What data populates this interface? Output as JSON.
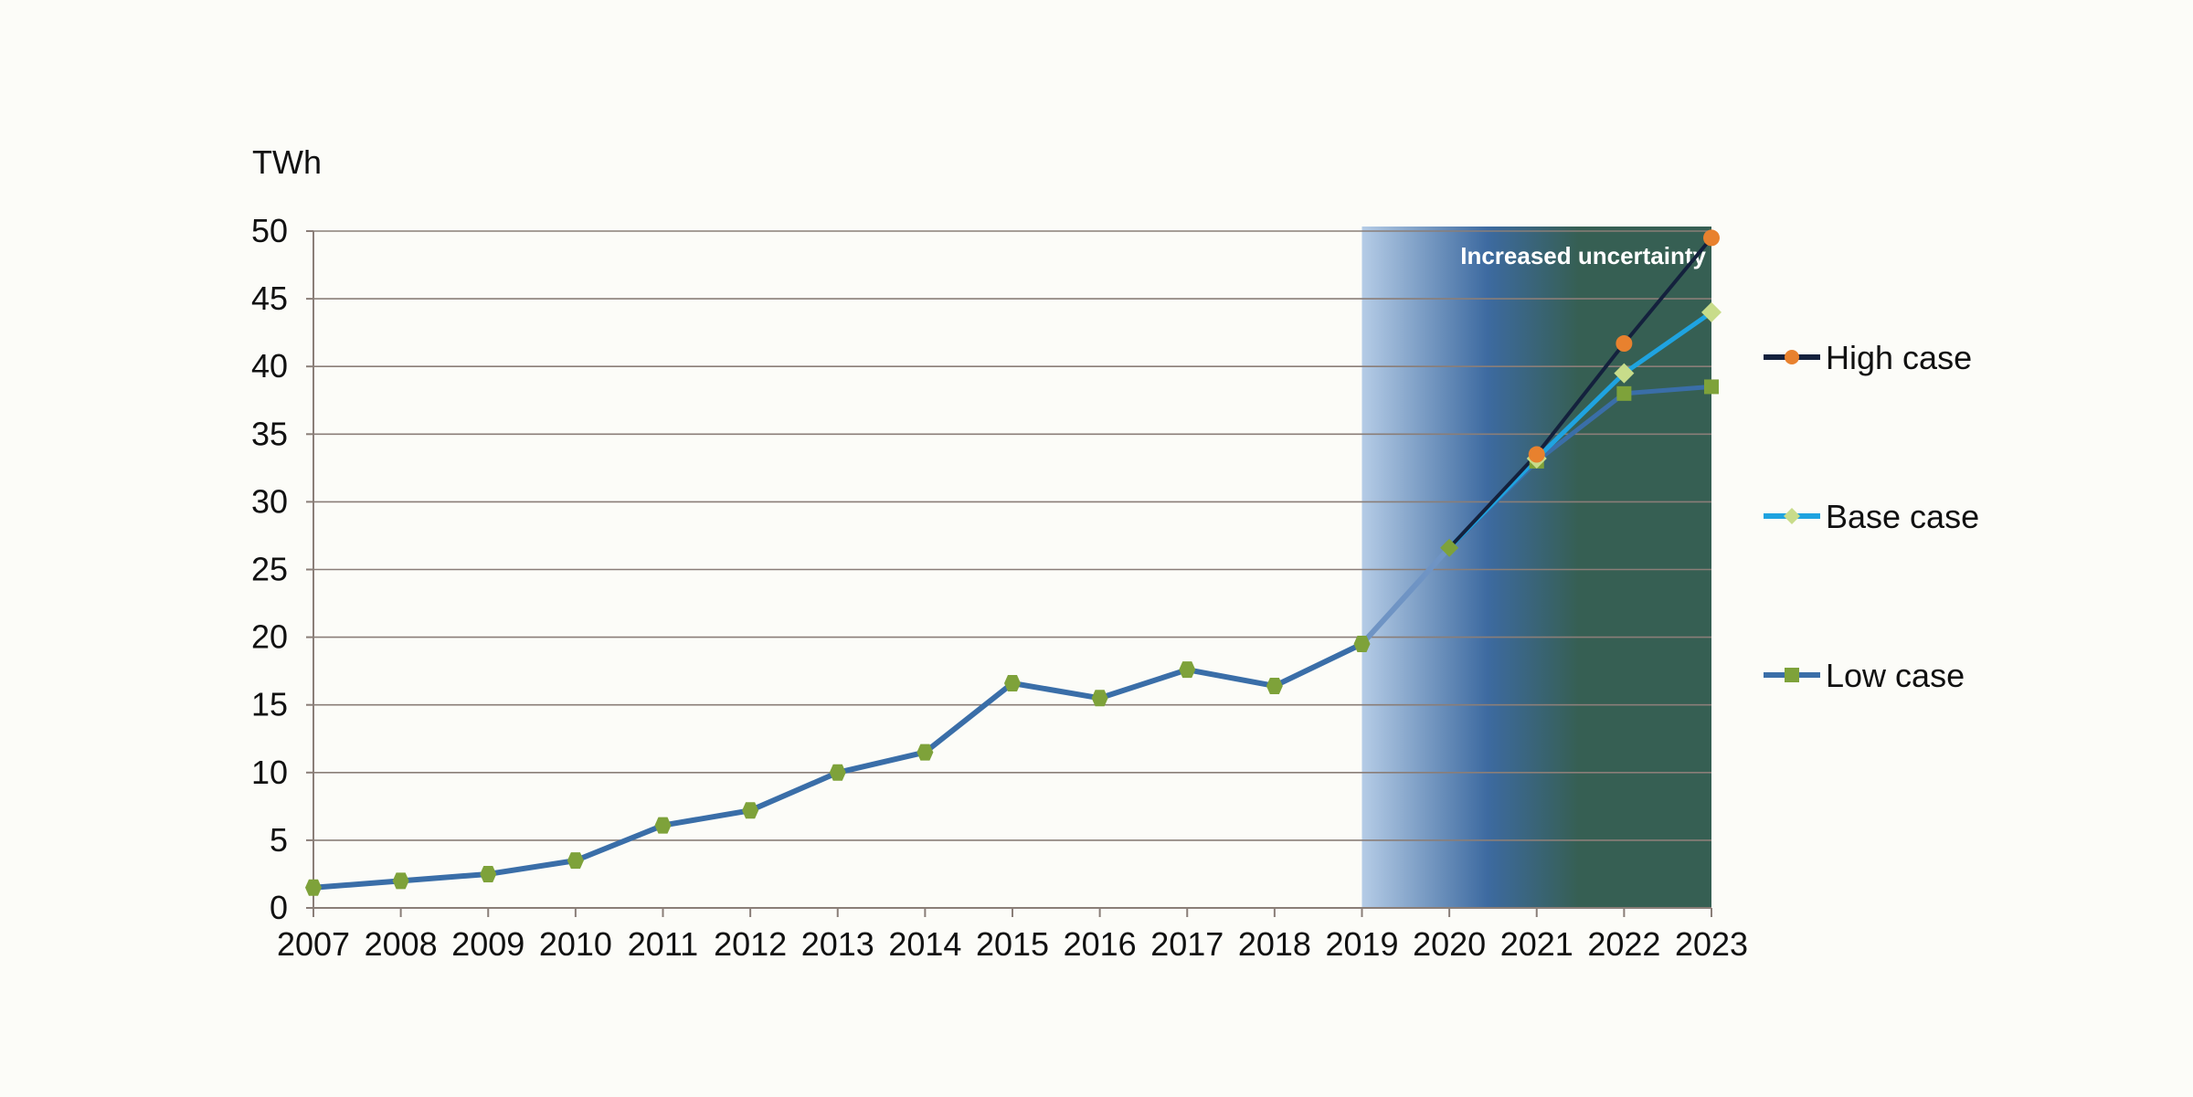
{
  "chart_data": {
    "type": "line",
    "title": "",
    "xlabel": "",
    "ylabel": "TWh",
    "ylim": [
      0,
      50
    ],
    "yticks": [
      0,
      5,
      10,
      15,
      20,
      25,
      30,
      35,
      40,
      45,
      50
    ],
    "grid": true,
    "x": [
      "2007",
      "2008",
      "2009",
      "2010",
      "2011",
      "2012",
      "2013",
      "2014",
      "2015",
      "2016",
      "2017",
      "2018",
      "2019",
      "2020",
      "2021",
      "2022",
      "2023"
    ],
    "historical": [
      1.5,
      2.0,
      2.5,
      3.5,
      6.1,
      7.2,
      10.0,
      11.5,
      16.6,
      15.5,
      17.6,
      16.4,
      19.5,
      26.6
    ],
    "series": [
      {
        "name": "High case",
        "color": "#14213d",
        "marker": "circle",
        "marker_color": "#e8812e",
        "x": [
          "2020",
          "2021",
          "2022",
          "2023"
        ],
        "values": [
          26.6,
          33.5,
          41.7,
          49.5
        ]
      },
      {
        "name": "Base case",
        "color": "#1fa3e0",
        "marker": "diamond",
        "marker_color": "#c8dc8a",
        "x": [
          "2020",
          "2021",
          "2022",
          "2023"
        ],
        "values": [
          26.6,
          33.2,
          39.5,
          44.0
        ]
      },
      {
        "name": "Low case",
        "color": "#3a6ea8",
        "marker": "square",
        "marker_color": "#7ea23a",
        "x": [
          "2020",
          "2021",
          "2022",
          "2023"
        ],
        "values": [
          26.6,
          33.0,
          38.0,
          38.5
        ]
      }
    ],
    "annotation": {
      "text": "Increased uncertainty",
      "x_range": [
        "2019",
        "2023"
      ]
    },
    "legend_position": "right",
    "colors": {
      "historical_line": "#3a6ea8",
      "historical_marker": "#7ea23a",
      "grid": "#8a7e78",
      "band_start": "#b5cce6",
      "band_mid": "#3d6aa0",
      "band_end": "#365f53"
    }
  }
}
